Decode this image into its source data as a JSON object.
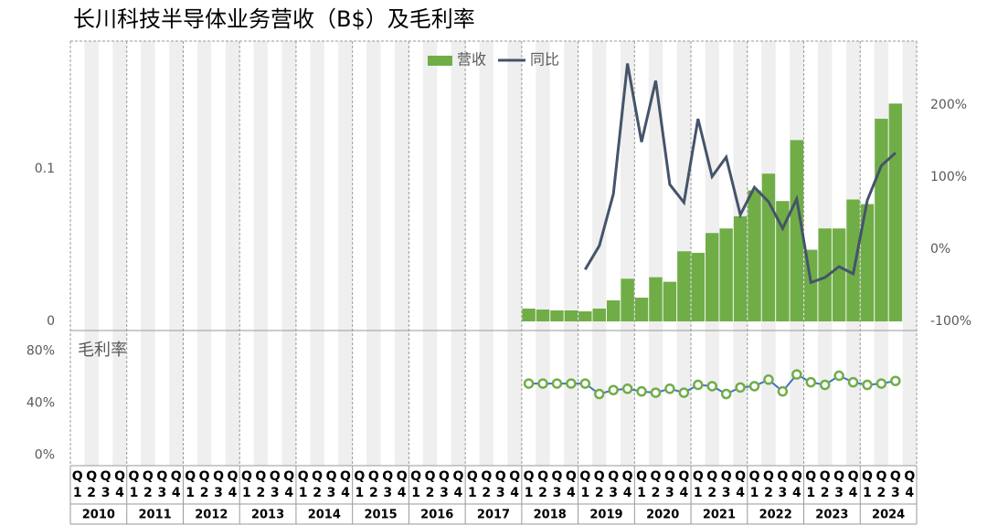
{
  "chart_data": [
    {
      "type": "bar",
      "title": "长川科技半导体业务营收（B$）及毛利率",
      "categories": [
        "Q1",
        "Q2",
        "Q3",
        "Q4",
        "Q1",
        "Q2",
        "Q3",
        "Q4",
        "Q1",
        "Q2",
        "Q3",
        "Q4",
        "Q1",
        "Q2",
        "Q3",
        "Q4",
        "Q1",
        "Q2",
        "Q3",
        "Q4",
        "Q1",
        "Q2",
        "Q3",
        "Q4",
        "Q1",
        "Q2",
        "Q3",
        "Q4",
        "Q1",
        "Q2",
        "Q3",
        "Q4",
        "Q1",
        "Q2",
        "Q3",
        "Q4",
        "Q1",
        "Q2",
        "Q3",
        "Q4",
        "Q1",
        "Q2",
        "Q3",
        "Q4",
        "Q1",
        "Q2",
        "Q3",
        "Q4",
        "Q1",
        "Q2",
        "Q3",
        "Q4",
        "Q1",
        "Q2",
        "Q3",
        "Q4",
        "Q1",
        "Q2",
        "Q3",
        "Q4"
      ],
      "years": [
        "2010",
        "2011",
        "2012",
        "2013",
        "2014",
        "2015",
        "2016",
        "2017",
        "2018",
        "2019",
        "2020",
        "2021",
        "2022",
        "2023",
        "2024"
      ],
      "series": [
        {
          "name": "营收",
          "type": "bar",
          "color": "#70ad47",
          "values": [
            null,
            null,
            null,
            null,
            null,
            null,
            null,
            null,
            null,
            null,
            null,
            null,
            null,
            null,
            null,
            null,
            null,
            null,
            null,
            null,
            null,
            null,
            null,
            null,
            null,
            null,
            null,
            null,
            null,
            null,
            null,
            null,
            0.0084,
            0.0078,
            0.0072,
            0.0072,
            0.0066,
            0.0084,
            0.0138,
            0.028,
            0.0156,
            0.029,
            0.026,
            0.046,
            0.045,
            0.058,
            0.061,
            0.069,
            0.086,
            0.097,
            0.079,
            0.119,
            0.047,
            0.061,
            0.061,
            0.08,
            0.077,
            0.133,
            0.143,
            null
          ]
        },
        {
          "name": "同比",
          "type": "line",
          "axis": "y2",
          "color": "#44546a",
          "values": [
            null,
            null,
            null,
            null,
            null,
            null,
            null,
            null,
            null,
            null,
            null,
            null,
            null,
            null,
            null,
            null,
            null,
            null,
            null,
            null,
            null,
            null,
            null,
            null,
            null,
            null,
            null,
            null,
            null,
            null,
            null,
            null,
            null,
            null,
            null,
            null,
            -28,
            5,
            77,
            258,
            149,
            234,
            90,
            65,
            181,
            101,
            128,
            48,
            86,
            66,
            29,
            70,
            -46,
            -39,
            -24,
            -34,
            68,
            116,
            134,
            null
          ]
        }
      ],
      "ylim": [
        0,
        0.184
      ],
      "yticks": [
        0,
        0.1
      ],
      "y2lim": [
        -100,
        289
      ],
      "y2ticks": [
        {
          "value": -100,
          "label": "-100%"
        },
        {
          "value": 0,
          "label": "0%"
        },
        {
          "value": 100,
          "label": "100%"
        },
        {
          "value": 200,
          "label": "200%"
        }
      ]
    },
    {
      "type": "line",
      "title": "毛利率",
      "series": [
        {
          "color": "#4472c4",
          "marker_color": "#70ad47",
          "values": [
            null,
            null,
            null,
            null,
            null,
            null,
            null,
            null,
            null,
            null,
            null,
            null,
            null,
            null,
            null,
            null,
            null,
            null,
            null,
            null,
            null,
            null,
            null,
            null,
            null,
            null,
            null,
            null,
            null,
            null,
            null,
            null,
            55,
            55,
            55,
            55,
            55,
            47,
            50,
            51,
            49,
            48,
            51,
            48,
            54,
            53,
            47,
            52,
            53,
            58,
            49,
            62,
            56,
            54,
            61,
            56,
            54,
            55,
            57,
            null
          ]
        }
      ],
      "ylim": [
        -8,
        95
      ],
      "yticks": [
        {
          "value": 0,
          "label": "0%"
        },
        {
          "value": 40,
          "label": "40%"
        },
        {
          "value": 80,
          "label": "80%"
        }
      ]
    }
  ]
}
